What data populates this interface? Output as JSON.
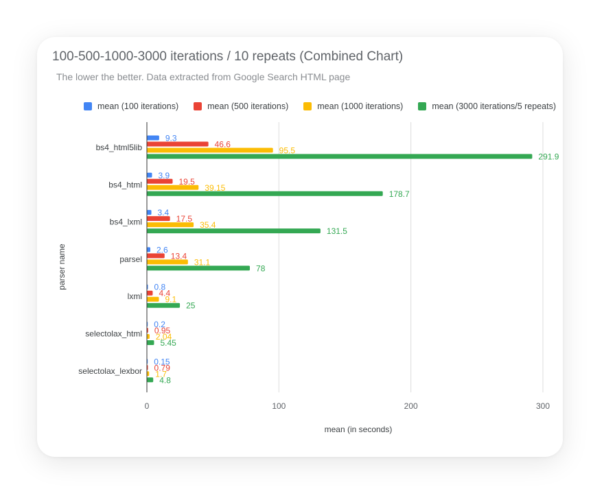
{
  "chart_data": {
    "type": "bar",
    "orientation": "horizontal",
    "title": "100-500-1000-3000 iterations / 10 repeats (Combined Chart)",
    "subtitle": "The lower the better. Data extracted from Google Search HTML page",
    "xlabel": "mean (in seconds)",
    "ylabel": "parser name",
    "xlim": [
      0,
      300
    ],
    "x_ticks": [
      "0",
      "100",
      "200",
      "300"
    ],
    "grid": true,
    "legend_position": "top",
    "categories": [
      "bs4_html5lib",
      "bs4_html",
      "bs4_lxml",
      "parsel",
      "lxml",
      "selectolax_html",
      "selectolax_lexbor"
    ],
    "series": [
      {
        "name": "mean (100 iterations)",
        "color": "#4285f4",
        "values": [
          9.3,
          3.9,
          3.4,
          2.6,
          0.8,
          0.2,
          0.15
        ],
        "labels": [
          "9.3",
          "3.9",
          "3.4",
          "2.6",
          "0.8",
          "0.2",
          "0.15"
        ]
      },
      {
        "name": "mean (500 iterations)",
        "color": "#ea4335",
        "values": [
          46.6,
          19.5,
          17.5,
          13.4,
          4.4,
          0.95,
          0.79
        ],
        "labels": [
          "46.6",
          "19.5",
          "17.5",
          "13.4",
          "4.4",
          "0.95",
          "0.79"
        ]
      },
      {
        "name": "mean (1000 iterations)",
        "color": "#fbbc04",
        "values": [
          95.5,
          39.15,
          35.4,
          31.1,
          9.1,
          2.04,
          1.7
        ],
        "labels": [
          "95.5",
          "39.15",
          "35.4",
          "31.1",
          "9.1",
          "2.04",
          "1.7"
        ]
      },
      {
        "name": "mean (3000 iterations/5 repeats)",
        "color": "#34a853",
        "values": [
          291.9,
          178.7,
          131.5,
          78,
          25,
          5.45,
          4.8
        ],
        "labels": [
          "291.9",
          "178.7",
          "131.5",
          "78",
          "25",
          "5.45",
          "4.8"
        ]
      }
    ]
  }
}
